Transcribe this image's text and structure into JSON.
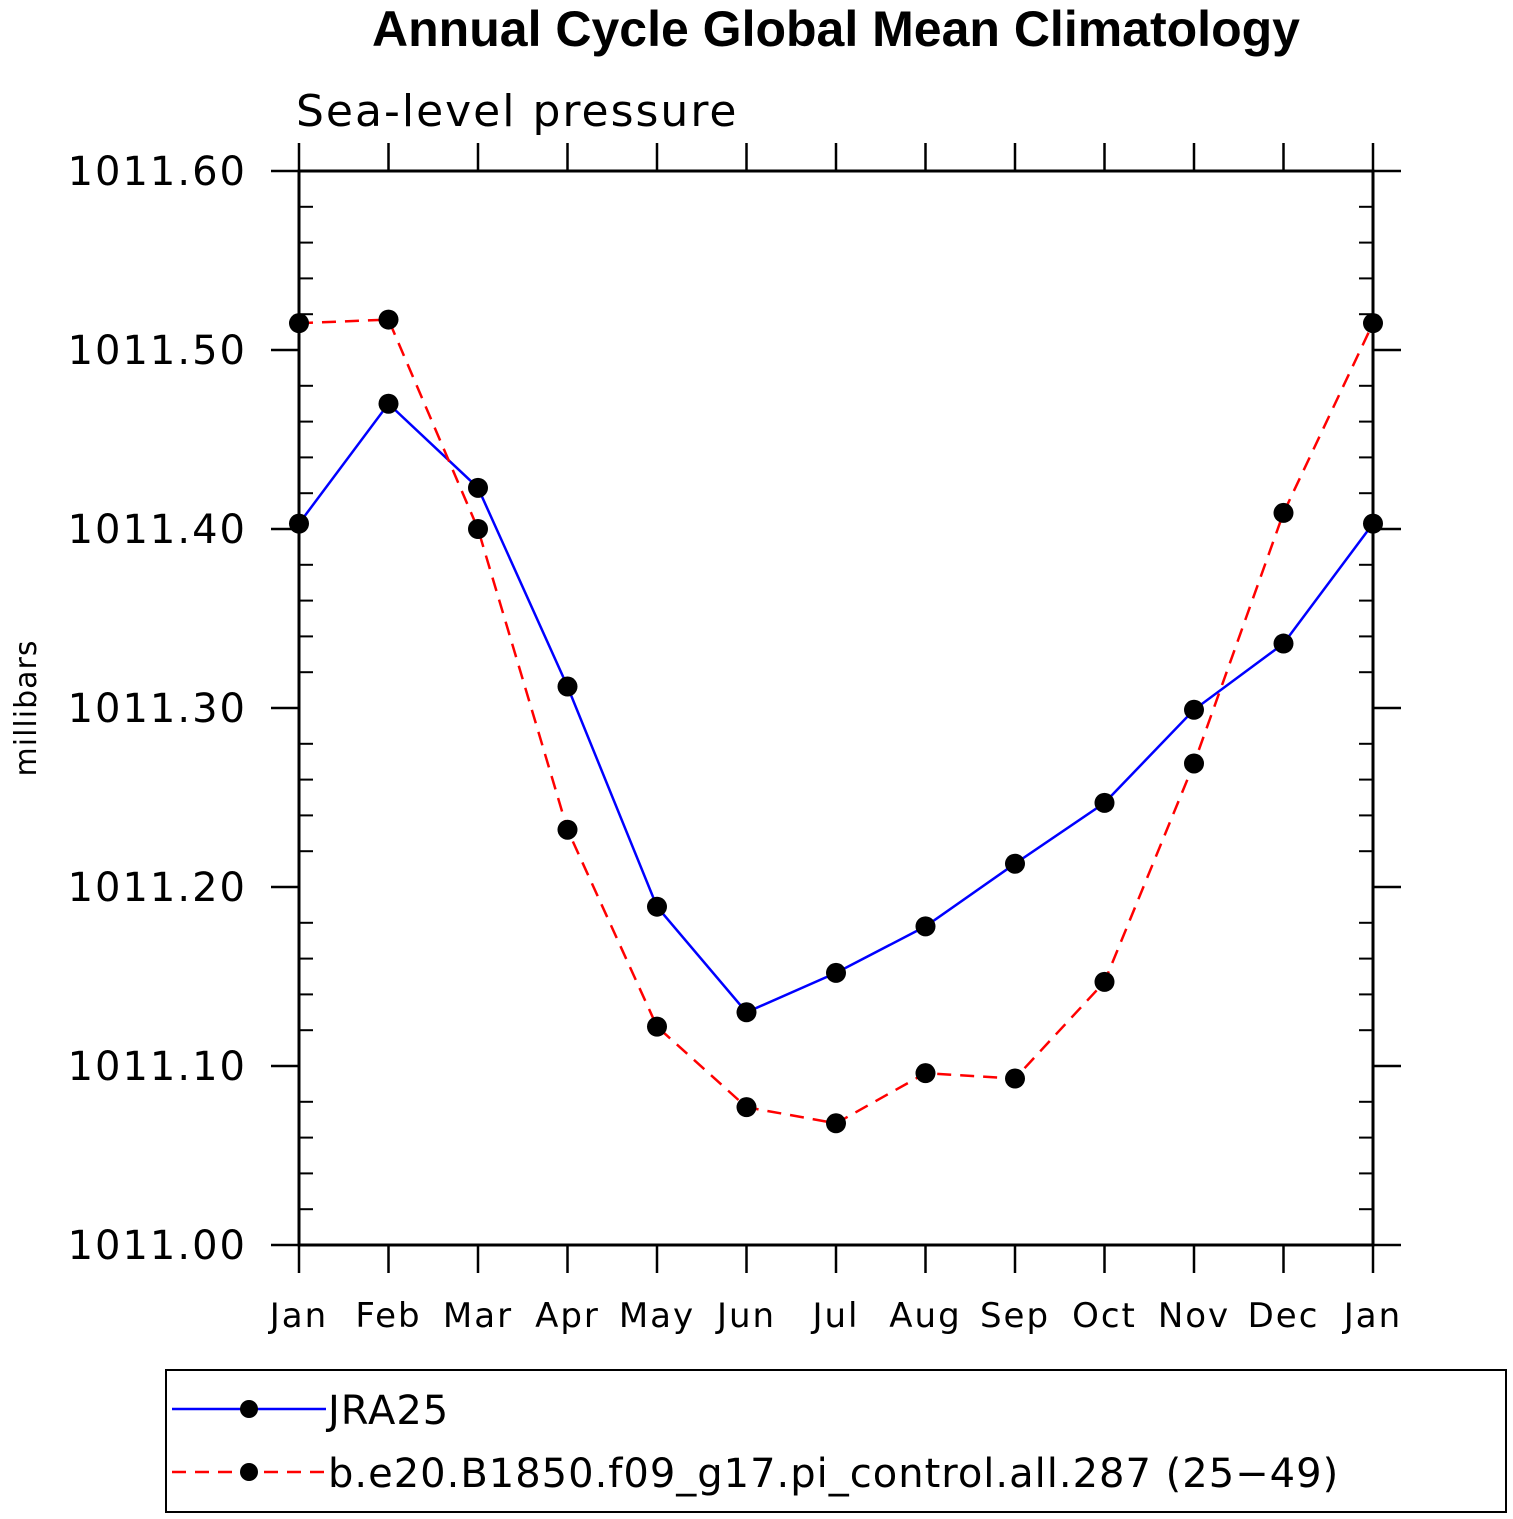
{
  "chart_data": {
    "type": "line",
    "title": "Annual Cycle Global Mean Climatology",
    "subtitle": "Sea-level pressure",
    "ylabel": "millibars",
    "xlabel": "",
    "categories": [
      "Jan",
      "Feb",
      "Mar",
      "Apr",
      "May",
      "Jun",
      "Jul",
      "Aug",
      "Sep",
      "Oct",
      "Nov",
      "Dec",
      "Jan"
    ],
    "ylim": [
      1011.0,
      1011.6
    ],
    "yticks": [
      "1011.00",
      "1011.10",
      "1011.20",
      "1011.30",
      "1011.40",
      "1011.50",
      "1011.60"
    ],
    "grid": false,
    "legend_position": "bottom",
    "series": [
      {
        "name": "JRA25",
        "color": "#0000ff",
        "line_style": "solid",
        "marker": "circle",
        "values": [
          1011.403,
          1011.47,
          1011.423,
          1011.312,
          1011.189,
          1011.13,
          1011.152,
          1011.178,
          1011.213,
          1011.247,
          1011.299,
          1011.336,
          1011.403
        ]
      },
      {
        "name": "b.e20.B1850.f09_g17.pi_control.all.287 (25−49)",
        "color": "#ff0000",
        "line_style": "dashed",
        "marker": "circle",
        "values": [
          1011.515,
          1011.517,
          1011.4,
          1011.232,
          1011.122,
          1011.077,
          1011.068,
          1011.096,
          1011.093,
          1011.147,
          1011.269,
          1011.409,
          1011.515
        ]
      }
    ]
  }
}
